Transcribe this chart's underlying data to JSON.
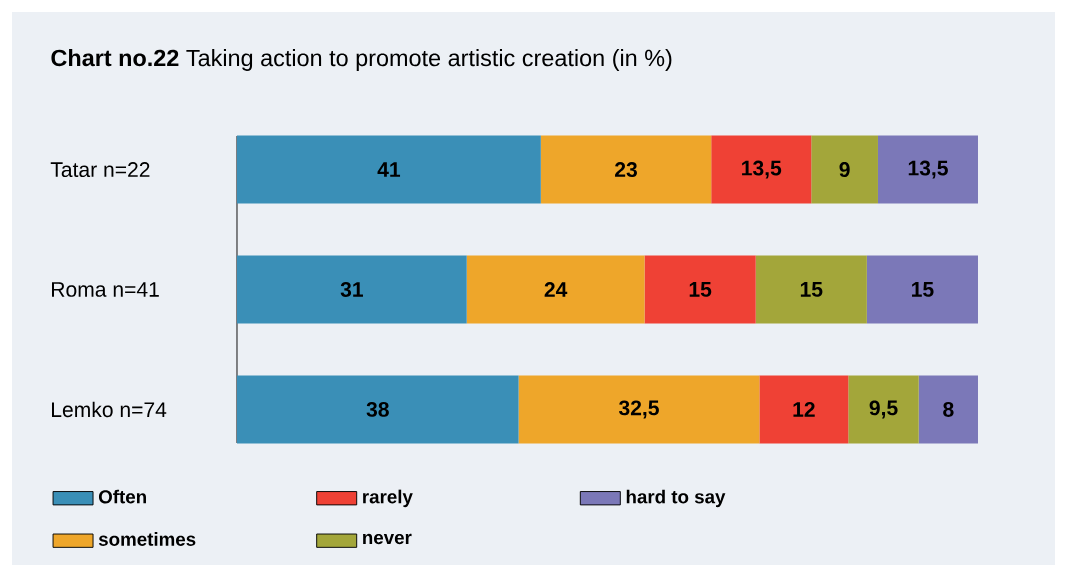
{
  "chart_data": {
    "type": "bar",
    "orientation": "horizontal",
    "stacked": true,
    "title": "**Chart no.22** Taking action to promote artistic creation (in %)",
    "categories": [
      "Tatar n=22",
      "Roma n=41",
      "Lemko n=74"
    ],
    "tick_labels": "y",
    "legend": "bottom left",
    "series": [
      {
        "name": "Often",
        "color": "#3a8fb7",
        "values": [
          41,
          31,
          38
        ],
        "value_labels": [
          "41",
          "31",
          "38"
        ]
      },
      {
        "name": "sometimes",
        "color": "#eea62a",
        "values": [
          23,
          24,
          32.5
        ],
        "value_labels": [
          "23",
          "24",
          "32,5"
        ]
      },
      {
        "name": "rarely",
        "color": "#ef4135",
        "values": [
          13.5,
          15,
          12
        ],
        "value_labels": [
          "13,5",
          "15",
          "12"
        ]
      },
      {
        "name": "never",
        "color": "#a3a63a",
        "values": [
          9,
          15,
          9.5
        ],
        "value_labels": [
          "9",
          "15",
          "9,5"
        ]
      },
      {
        "name": "hard to say",
        "color": "#7b78b8",
        "values": [
          13.5,
          15,
          8
        ],
        "value_labels": [
          "13,5",
          "15",
          "8"
        ]
      }
    ]
  }
}
